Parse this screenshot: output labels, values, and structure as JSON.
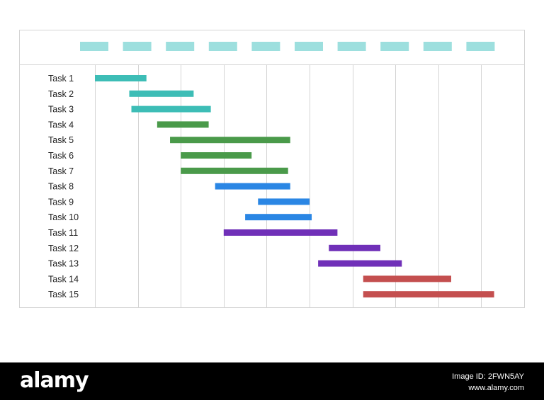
{
  "chart_data": {
    "type": "gantt",
    "title": "",
    "xlim": [
      0,
      10
    ],
    "grid": true,
    "header_color": "#9ddfde",
    "tasks": [
      {
        "label": "Task 1",
        "start": 0.0,
        "end": 1.2,
        "color": "#3dbdb6"
      },
      {
        "label": "Task 2",
        "start": 0.8,
        "end": 2.3,
        "color": "#3dbdb6"
      },
      {
        "label": "Task 3",
        "start": 0.85,
        "end": 2.7,
        "color": "#3dbdb6"
      },
      {
        "label": "Task 4",
        "start": 1.45,
        "end": 2.65,
        "color": "#4a9a4a"
      },
      {
        "label": "Task 5",
        "start": 1.75,
        "end": 4.55,
        "color": "#4a9a4a"
      },
      {
        "label": "Task 6",
        "start": 2.0,
        "end": 3.65,
        "color": "#4a9a4a"
      },
      {
        "label": "Task 7",
        "start": 2.0,
        "end": 4.5,
        "color": "#4a9a4a"
      },
      {
        "label": "Task 8",
        "start": 2.8,
        "end": 4.55,
        "color": "#2a86e4"
      },
      {
        "label": "Task 9",
        "start": 3.8,
        "end": 5.0,
        "color": "#2a86e4"
      },
      {
        "label": "Task 10",
        "start": 3.5,
        "end": 5.05,
        "color": "#2a86e4"
      },
      {
        "label": "Task 11",
        "start": 3.0,
        "end": 5.65,
        "color": "#7030b8"
      },
      {
        "label": "Task 12",
        "start": 5.45,
        "end": 6.65,
        "color": "#7030b8"
      },
      {
        "label": "Task 13",
        "start": 5.2,
        "end": 7.15,
        "color": "#7030b8"
      },
      {
        "label": "Task 14",
        "start": 6.25,
        "end": 8.3,
        "color": "#c44f4f"
      },
      {
        "label": "Task 15",
        "start": 6.25,
        "end": 9.3,
        "color": "#c44f4f"
      }
    ]
  },
  "watermark": {
    "logo": "alamy",
    "image_id": "Image ID: 2FWN5AY",
    "url": "www.alamy.com"
  }
}
